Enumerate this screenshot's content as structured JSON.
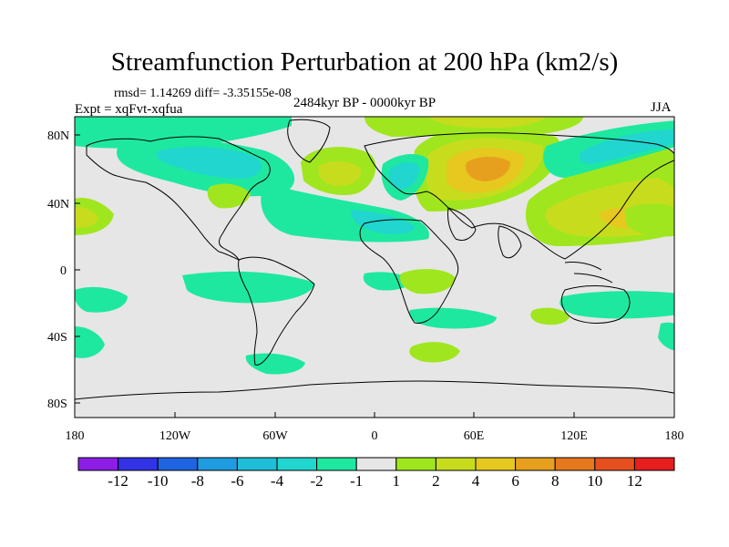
{
  "title": "Streamfunction Perturbation at 200 hPa (km2/s)",
  "stats": "rmsd= 1.14269 diff= -3.35155e-08",
  "experiment": "Expt = xqFvt-xqfua",
  "period": "2484kyr BP - 0000kyr BP",
  "season": "JJA",
  "axes": {
    "lat_labels": [
      "80N",
      "40N",
      "0",
      "40S",
      "80S"
    ],
    "lon_labels": [
      "180",
      "120W",
      "60W",
      "0",
      "60E",
      "120E",
      "180"
    ]
  },
  "colorbar": {
    "labels": [
      "-12",
      "-10",
      "-8",
      "-6",
      "-4",
      "-2",
      "-1",
      "1",
      "2",
      "4",
      "6",
      "8",
      "10",
      "12"
    ],
    "colors": [
      "#8c1ee6",
      "#3232e6",
      "#1f64e0",
      "#1f9be0",
      "#1fbed8",
      "#20d6cf",
      "#1ee8a0",
      "#e6e6e6",
      "#a0e61e",
      "#c8dc1e",
      "#e6c81e",
      "#e6a01e",
      "#e6781e",
      "#e6501e",
      "#e61e1e"
    ]
  },
  "colors": {
    "plot_background": "#e6e6e6",
    "land_outline": "#000000"
  }
}
